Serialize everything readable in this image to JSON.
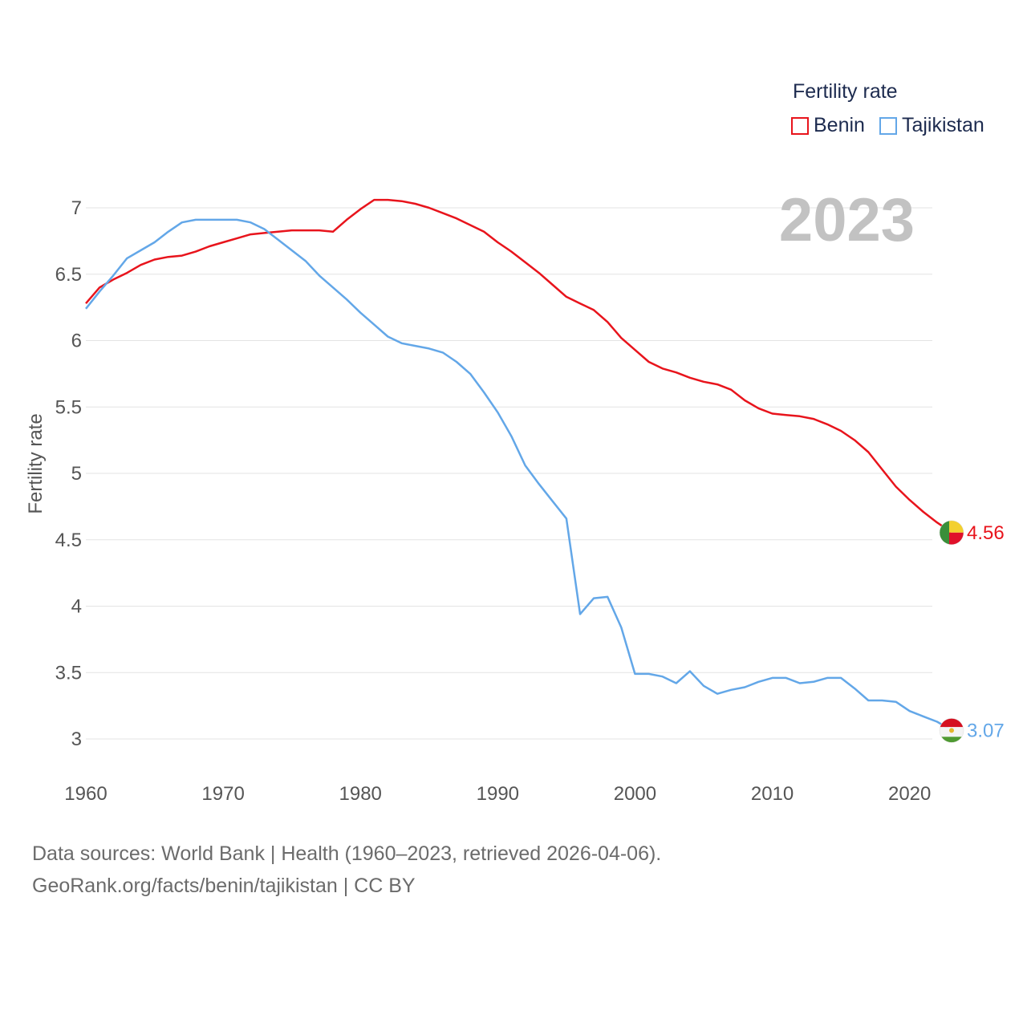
{
  "chart_data": {
    "type": "line",
    "title": "",
    "ylabel": "Fertility rate",
    "xlabel": "",
    "xlim": [
      1960,
      2023
    ],
    "ylim": [
      2.8,
      7.2
    ],
    "yticks": [
      3,
      3.5,
      4,
      4.5,
      5,
      5.5,
      6,
      6.5,
      7
    ],
    "xticks": [
      1960,
      1970,
      1980,
      1990,
      2000,
      2010,
      2020
    ],
    "year_label": "2023",
    "legend": {
      "title": "Fertility rate",
      "position": "top-right"
    },
    "series": [
      {
        "name": "Benin",
        "color": "#e8141c",
        "end_label": "4.56",
        "flag": "benin-flag",
        "x": [
          1960,
          1961,
          1962,
          1963,
          1964,
          1965,
          1966,
          1967,
          1968,
          1969,
          1970,
          1971,
          1972,
          1973,
          1974,
          1975,
          1976,
          1977,
          1978,
          1979,
          1980,
          1981,
          1982,
          1983,
          1984,
          1985,
          1986,
          1987,
          1988,
          1989,
          1990,
          1991,
          1992,
          1993,
          1994,
          1995,
          1996,
          1997,
          1998,
          1999,
          2000,
          2001,
          2002,
          2003,
          2004,
          2005,
          2006,
          2007,
          2008,
          2009,
          2010,
          2011,
          2012,
          2013,
          2014,
          2015,
          2016,
          2017,
          2018,
          2019,
          2020,
          2021,
          2022,
          2023
        ],
        "values": [
          6.28,
          6.4,
          6.46,
          6.51,
          6.57,
          6.61,
          6.63,
          6.64,
          6.67,
          6.71,
          6.74,
          6.77,
          6.8,
          6.81,
          6.82,
          6.83,
          6.83,
          6.83,
          6.82,
          6.91,
          6.99,
          7.06,
          7.06,
          7.05,
          7.03,
          7.0,
          6.96,
          6.92,
          6.87,
          6.82,
          6.74,
          6.67,
          6.59,
          6.51,
          6.42,
          6.33,
          6.28,
          6.23,
          6.14,
          6.02,
          5.93,
          5.84,
          5.79,
          5.76,
          5.72,
          5.69,
          5.67,
          5.63,
          5.55,
          5.49,
          5.45,
          5.44,
          5.43,
          5.41,
          5.37,
          5.32,
          5.25,
          5.16,
          5.03,
          4.9,
          4.8,
          4.71,
          4.63,
          4.56
        ]
      },
      {
        "name": "Tajikistan",
        "color": "#63a7e8",
        "end_label": "3.07",
        "flag": "tajikistan-flag",
        "x": [
          1960,
          1961,
          1962,
          1963,
          1964,
          1965,
          1966,
          1967,
          1968,
          1969,
          1970,
          1971,
          1972,
          1973,
          1974,
          1975,
          1976,
          1977,
          1978,
          1979,
          1980,
          1981,
          1982,
          1983,
          1984,
          1985,
          1986,
          1987,
          1988,
          1989,
          1990,
          1991,
          1992,
          1993,
          1994,
          1995,
          1996,
          1997,
          1998,
          1999,
          2000,
          2001,
          2002,
          2003,
          2004,
          2005,
          2006,
          2007,
          2008,
          2009,
          2010,
          2011,
          2012,
          2013,
          2014,
          2015,
          2016,
          2017,
          2018,
          2019,
          2020,
          2021,
          2022,
          2023
        ],
        "values": [
          6.24,
          6.37,
          6.49,
          6.62,
          6.68,
          6.74,
          6.82,
          6.89,
          6.91,
          6.91,
          6.91,
          6.91,
          6.89,
          6.84,
          6.76,
          6.68,
          6.6,
          6.49,
          6.4,
          6.31,
          6.21,
          6.12,
          6.03,
          5.98,
          5.96,
          5.94,
          5.91,
          5.84,
          5.75,
          5.61,
          5.46,
          5.28,
          5.06,
          4.92,
          4.79,
          4.66,
          3.94,
          4.06,
          4.07,
          3.84,
          3.49,
          3.49,
          3.47,
          3.42,
          3.51,
          3.4,
          3.34,
          3.37,
          3.39,
          3.43,
          3.46,
          3.46,
          3.42,
          3.43,
          3.46,
          3.46,
          3.38,
          3.29,
          3.29,
          3.28,
          3.21,
          3.17,
          3.13,
          3.07
        ]
      }
    ]
  },
  "footer": {
    "sources": "Data sources: World Bank | Health (1960–2023, retrieved 2026-04-06).",
    "credit": "GeoRank.org/facts/benin/tajikistan | CC BY"
  }
}
